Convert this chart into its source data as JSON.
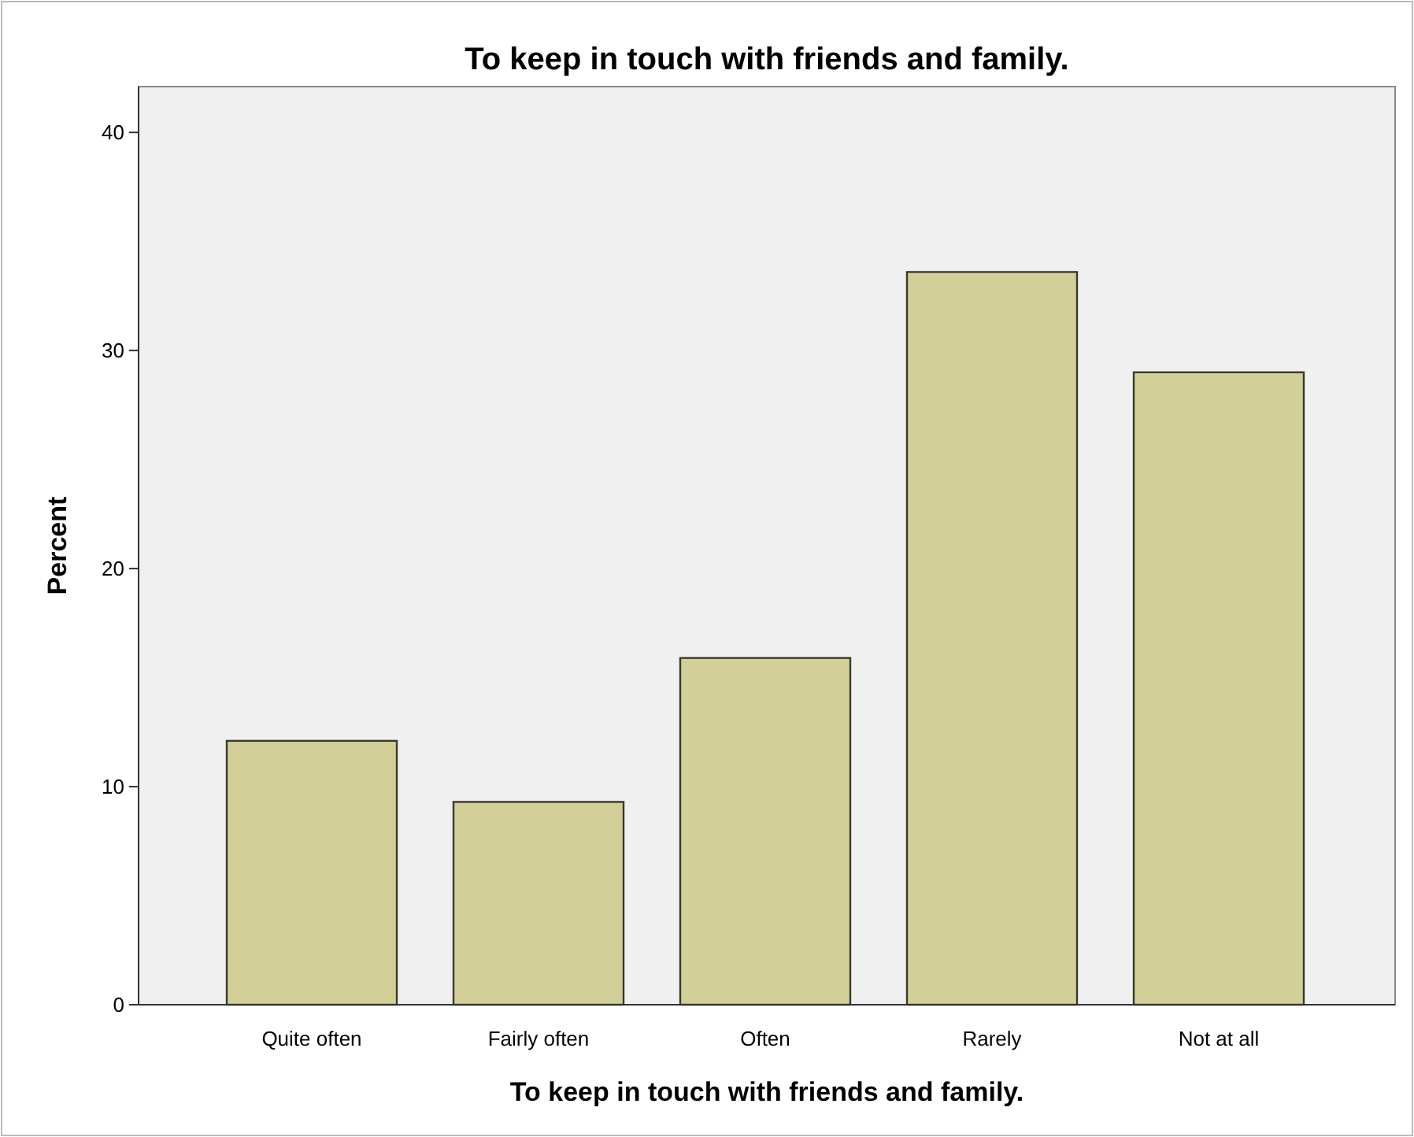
{
  "chart_data": {
    "type": "bar",
    "title": "To keep in touch with friends and family.",
    "xlabel": "To keep in touch with friends and family.",
    "ylabel": "Percent",
    "categories": [
      "Quite often",
      "Fairly often",
      "Often",
      "Rarely",
      "Not at all"
    ],
    "values": [
      12.1,
      9.3,
      15.9,
      33.6,
      29.0
    ],
    "color": "#d3cf98",
    "ylim": [
      0,
      42.1
    ],
    "yticks": [
      0,
      10,
      20,
      30,
      40
    ],
    "grid": false
  }
}
